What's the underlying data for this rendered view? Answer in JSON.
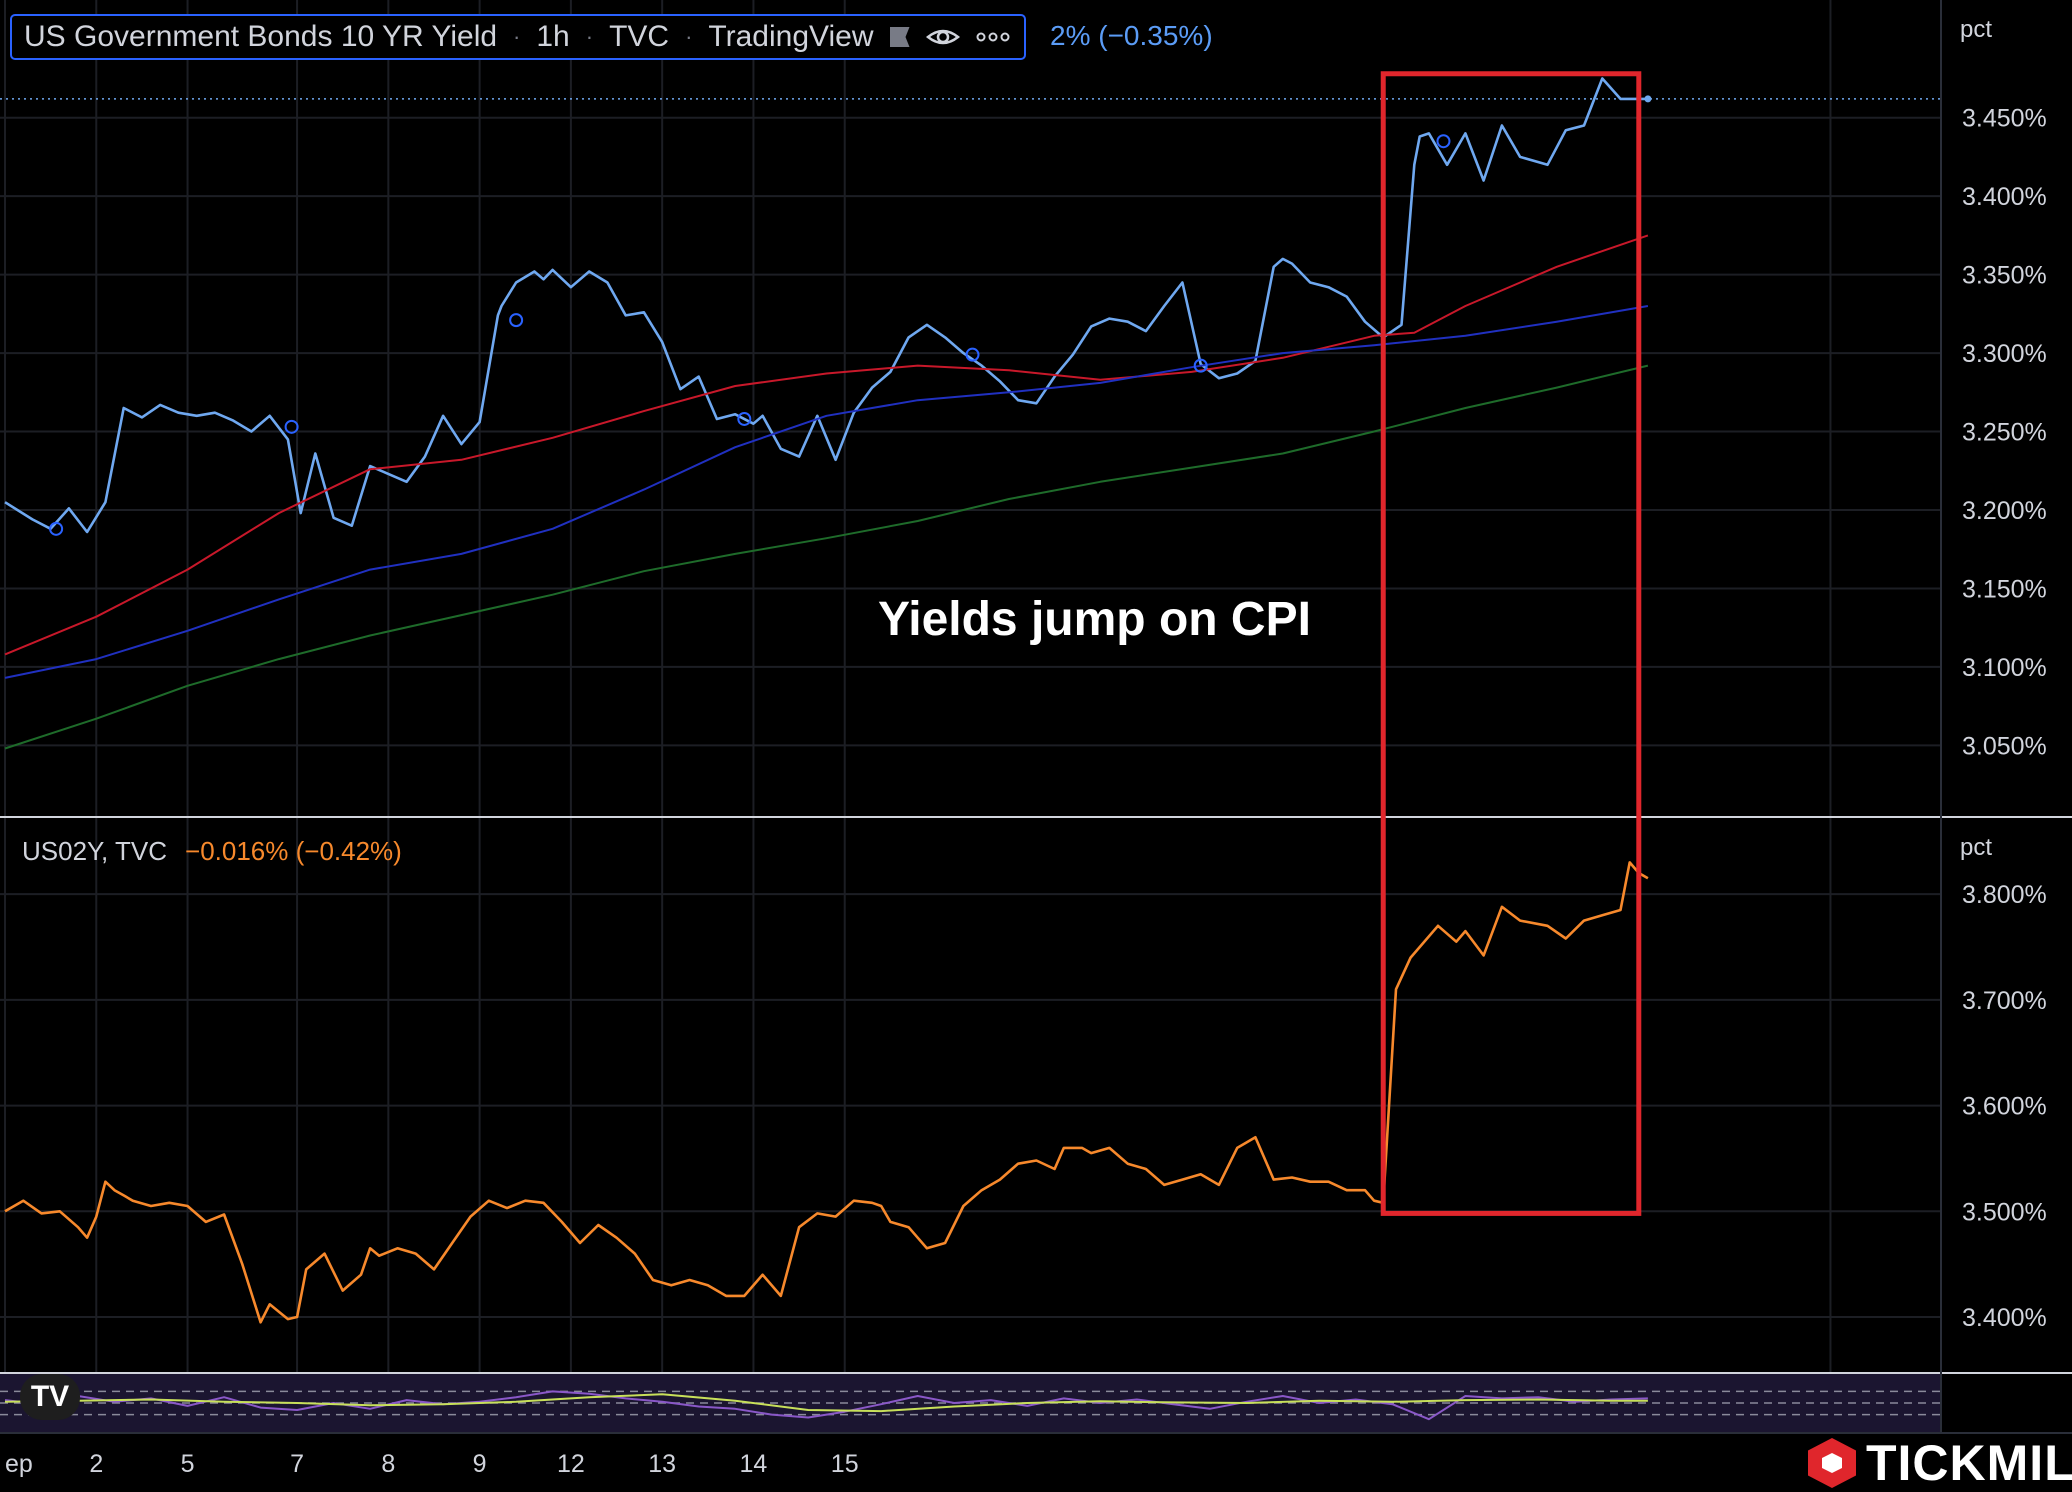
{
  "header": {
    "symbol_title": "US Government Bonds 10 YR Yield",
    "interval": "1h",
    "exchange": "TVC",
    "source": "TradingView",
    "change_text": "2% (−0.35%)",
    "eye_icon": "eye-icon",
    "more_icon": "more-icon",
    "flag_icon": "flag-icon"
  },
  "annotation": "Yields jump on CPI",
  "units": {
    "main": "pct",
    "sub": "pct"
  },
  "sub_legend": {
    "symbol": "US02Y, TVC",
    "change": "−0.016% (−0.42%)"
  },
  "brand": {
    "name": "TICKMILL",
    "logo_icon": "tickmill-hexagon-icon"
  },
  "tv_logo": "TV",
  "colors": {
    "price10y": "#6fa8f0",
    "ma_red": "#c8182a",
    "ma_blue": "#2030c0",
    "ma_green": "#1e6b2a",
    "price2y": "#f7892c",
    "rsi_purple": "#8a58c8",
    "rsi_yellow": "#c8e05a",
    "box": "#e0262c",
    "grid": "#1c1e24"
  },
  "chart_data": [
    {
      "type": "line",
      "title": "US Government Bonds 10 YR Yield",
      "ylabel": "pct",
      "x_ticks": [
        "ep",
        "2",
        "5",
        "7",
        "8",
        "9",
        "12",
        "13",
        "14",
        "15"
      ],
      "y_ticks": [
        "3.050%",
        "3.100%",
        "3.150%",
        "3.200%",
        "3.250%",
        "3.300%",
        "3.350%",
        "3.400%",
        "3.450%"
      ],
      "ylim": [
        3.005,
        3.525
      ],
      "xlim": [
        0,
        10.6
      ],
      "series": [
        {
          "name": "",
          "role": "price",
          "color": "#6fa8f0",
          "x": [
            0,
            0.15,
            0.25,
            0.35,
            0.45,
            0.55,
            0.65,
            0.75,
            0.85,
            0.95,
            1.05,
            1.15,
            1.25,
            1.35,
            1.45,
            1.55,
            1.62,
            1.7,
            1.8,
            1.9,
            2.0,
            2.1,
            2.2,
            2.3,
            2.4,
            2.5,
            2.6,
            2.7,
            2.72,
            2.8,
            2.9,
            2.95,
            3.0,
            3.1,
            3.2,
            3.3,
            3.4,
            3.5,
            3.6,
            3.7,
            3.8,
            3.9,
            4.0,
            4.1,
            4.15,
            4.25,
            4.35,
            4.45,
            4.55,
            4.65,
            4.75,
            4.85,
            4.95,
            5.05,
            5.15,
            5.25,
            5.35,
            5.45,
            5.55,
            5.65,
            5.75,
            5.85,
            5.95,
            6.05,
            6.15,
            6.25,
            6.35,
            6.45,
            6.55,
            6.65,
            6.75,
            6.85,
            6.95,
            7.0,
            7.05,
            7.15,
            7.25,
            7.35,
            7.45,
            7.55,
            7.65,
            7.72,
            7.75,
            7.8,
            7.9,
            8.0,
            8.1,
            8.2,
            8.3,
            8.45,
            8.55,
            8.65,
            8.75,
            8.85,
            8.95,
            9.0
          ],
          "values": [
            3.205,
            3.194,
            3.188,
            3.201,
            3.186,
            3.205,
            3.265,
            3.259,
            3.267,
            3.262,
            3.26,
            3.262,
            3.257,
            3.25,
            3.26,
            3.245,
            3.198,
            3.236,
            3.195,
            3.19,
            3.228,
            3.223,
            3.218,
            3.234,
            3.26,
            3.242,
            3.256,
            3.324,
            3.33,
            3.345,
            3.352,
            3.347,
            3.353,
            3.342,
            3.352,
            3.345,
            3.324,
            3.326,
            3.307,
            3.277,
            3.285,
            3.258,
            3.261,
            3.255,
            3.26,
            3.239,
            3.234,
            3.26,
            3.232,
            3.262,
            3.278,
            3.288,
            3.31,
            3.318,
            3.31,
            3.3,
            3.292,
            3.282,
            3.27,
            3.268,
            3.285,
            3.299,
            3.317,
            3.322,
            3.32,
            3.314,
            3.33,
            3.345,
            3.293,
            3.284,
            3.287,
            3.295,
            3.355,
            3.36,
            3.357,
            3.345,
            3.342,
            3.336,
            3.32,
            3.31,
            3.318,
            3.42,
            3.438,
            3.44,
            3.42,
            3.44,
            3.41,
            3.445,
            3.425,
            3.42,
            3.442,
            3.445,
            3.475,
            3.462,
            3.462,
            3.462
          ]
        },
        {
          "name": "",
          "role": "moving-average",
          "color": "#c8182a",
          "x": [
            0,
            0.5,
            1.0,
            1.5,
            2.0,
            2.5,
            3.0,
            3.5,
            4.0,
            4.5,
            5.0,
            5.5,
            6.0,
            6.5,
            7.0,
            7.5,
            7.72,
            8.0,
            8.5,
            9.0
          ],
          "values": [
            3.108,
            3.132,
            3.162,
            3.198,
            3.226,
            3.232,
            3.246,
            3.263,
            3.279,
            3.287,
            3.292,
            3.289,
            3.283,
            3.288,
            3.297,
            3.311,
            3.313,
            3.33,
            3.355,
            3.375
          ]
        },
        {
          "name": "",
          "role": "moving-average",
          "color": "#2030c0",
          "x": [
            0,
            0.5,
            1.0,
            1.5,
            2.0,
            2.5,
            3.0,
            3.5,
            4.0,
            4.5,
            5.0,
            5.5,
            6.0,
            6.5,
            7.0,
            7.5,
            8.0,
            8.5,
            9.0
          ],
          "values": [
            3.093,
            3.105,
            3.123,
            3.143,
            3.162,
            3.172,
            3.188,
            3.213,
            3.24,
            3.26,
            3.27,
            3.275,
            3.281,
            3.291,
            3.3,
            3.305,
            3.311,
            3.32,
            3.33
          ]
        },
        {
          "name": "",
          "role": "moving-average",
          "color": "#1e6b2a",
          "x": [
            0,
            0.5,
            1.0,
            1.5,
            2.0,
            2.5,
            3.0,
            3.5,
            4.0,
            4.5,
            5.0,
            5.5,
            6.0,
            6.5,
            7.0,
            7.5,
            8.0,
            8.5,
            9.0
          ],
          "values": [
            3.048,
            3.067,
            3.088,
            3.105,
            3.12,
            3.133,
            3.146,
            3.161,
            3.172,
            3.182,
            3.193,
            3.207,
            3.218,
            3.227,
            3.236,
            3.25,
            3.265,
            3.278,
            3.292
          ]
        }
      ],
      "markers": [
        [
          0.28,
          3.188
        ],
        [
          1.57,
          3.253
        ],
        [
          2.8,
          3.321
        ],
        [
          4.05,
          3.258
        ],
        [
          5.3,
          3.299
        ],
        [
          6.55,
          3.292
        ],
        [
          7.88,
          3.435
        ]
      ]
    },
    {
      "type": "line",
      "title": "US02Y, TVC",
      "ylabel": "pct",
      "y_ticks": [
        "3.400%",
        "3.500%",
        "3.600%",
        "3.700%",
        "3.800%"
      ],
      "ylim": [
        3.348,
        3.872
      ],
      "xlim": [
        0,
        10.6
      ],
      "series": [
        {
          "name": "US02Y",
          "color": "#f7892c",
          "x": [
            0,
            0.1,
            0.2,
            0.3,
            0.4,
            0.45,
            0.5,
            0.55,
            0.6,
            0.65,
            0.7,
            0.8,
            0.9,
            1.0,
            1.1,
            1.2,
            1.3,
            1.4,
            1.45,
            1.55,
            1.6,
            1.65,
            1.75,
            1.85,
            1.95,
            2.0,
            2.05,
            2.15,
            2.25,
            2.35,
            2.45,
            2.55,
            2.65,
            2.75,
            2.85,
            2.95,
            3.05,
            3.15,
            3.25,
            3.35,
            3.45,
            3.55,
            3.65,
            3.75,
            3.85,
            3.95,
            4.05,
            4.15,
            4.25,
            4.35,
            4.45,
            4.55,
            4.65,
            4.75,
            4.8,
            4.85,
            4.95,
            5.05,
            5.15,
            5.25,
            5.35,
            5.45,
            5.55,
            5.65,
            5.75,
            5.8,
            5.9,
            5.95,
            6.05,
            6.15,
            6.25,
            6.35,
            6.45,
            6.55,
            6.65,
            6.75,
            6.85,
            6.95,
            7.05,
            7.15,
            7.25,
            7.35,
            7.45,
            7.5,
            7.55,
            7.62,
            7.7,
            7.85,
            7.95,
            8.0,
            8.1,
            8.2,
            8.3,
            8.45,
            8.55,
            8.65,
            8.75,
            8.85,
            8.9,
            8.95,
            9.0
          ],
          "values": [
            3.5,
            3.51,
            3.498,
            3.5,
            3.485,
            3.475,
            3.495,
            3.528,
            3.52,
            3.515,
            3.51,
            3.505,
            3.508,
            3.505,
            3.49,
            3.497,
            3.45,
            3.395,
            3.412,
            3.398,
            3.4,
            3.445,
            3.46,
            3.425,
            3.44,
            3.465,
            3.458,
            3.465,
            3.46,
            3.445,
            3.47,
            3.495,
            3.51,
            3.503,
            3.51,
            3.508,
            3.49,
            3.47,
            3.487,
            3.475,
            3.46,
            3.435,
            3.43,
            3.435,
            3.43,
            3.42,
            3.42,
            3.44,
            3.42,
            3.485,
            3.498,
            3.495,
            3.51,
            3.508,
            3.505,
            3.49,
            3.485,
            3.465,
            3.47,
            3.505,
            3.52,
            3.53,
            3.545,
            3.548,
            3.54,
            3.56,
            3.56,
            3.555,
            3.56,
            3.545,
            3.54,
            3.525,
            3.53,
            3.535,
            3.525,
            3.56,
            3.57,
            3.53,
            3.532,
            3.528,
            3.528,
            3.52,
            3.52,
            3.51,
            3.508,
            3.71,
            3.74,
            3.77,
            3.755,
            3.765,
            3.742,
            3.788,
            3.775,
            3.77,
            3.758,
            3.775,
            3.78,
            3.785,
            3.83,
            3.82,
            3.815
          ]
        }
      ]
    },
    {
      "type": "line",
      "title": "",
      "ylim": [
        0,
        100
      ],
      "xlim": [
        0,
        10.6
      ],
      "series": [
        {
          "name": "",
          "color": "#8a58c8",
          "x": [
            0,
            0.2,
            0.4,
            0.6,
            0.8,
            1.0,
            1.2,
            1.4,
            1.6,
            1.8,
            2.0,
            2.2,
            2.4,
            2.6,
            2.8,
            3.0,
            3.2,
            3.4,
            3.6,
            3.8,
            4.0,
            4.2,
            4.4,
            4.6,
            4.8,
            5.0,
            5.2,
            5.4,
            5.6,
            5.8,
            6.0,
            6.2,
            6.4,
            6.6,
            6.8,
            7.0,
            7.2,
            7.4,
            7.6,
            7.8,
            8.0,
            8.2,
            8.4,
            8.6,
            8.8,
            9.0
          ],
          "values": [
            55,
            48,
            62,
            52,
            58,
            45,
            60,
            42,
            38,
            50,
            40,
            55,
            48,
            52,
            60,
            70,
            66,
            58,
            52,
            44,
            40,
            30,
            25,
            35,
            48,
            62,
            50,
            55,
            45,
            58,
            50,
            56,
            48,
            40,
            52,
            62,
            50,
            56,
            48,
            22,
            62,
            58,
            60,
            52,
            56,
            58
          ]
        },
        {
          "name": "",
          "color": "#c8e05a",
          "x": [
            0,
            0.4,
            0.8,
            1.2,
            1.6,
            2.0,
            2.4,
            2.8,
            3.2,
            3.6,
            4.0,
            4.4,
            4.8,
            5.2,
            5.6,
            6.0,
            6.4,
            6.8,
            7.2,
            7.6,
            8.0,
            8.4,
            8.8,
            9.0
          ],
          "values": [
            52,
            54,
            56,
            52,
            50,
            46,
            48,
            52,
            60,
            65,
            54,
            38,
            36,
            44,
            50,
            53,
            51,
            50,
            54,
            52,
            55,
            56,
            54,
            54
          ]
        }
      ]
    }
  ]
}
